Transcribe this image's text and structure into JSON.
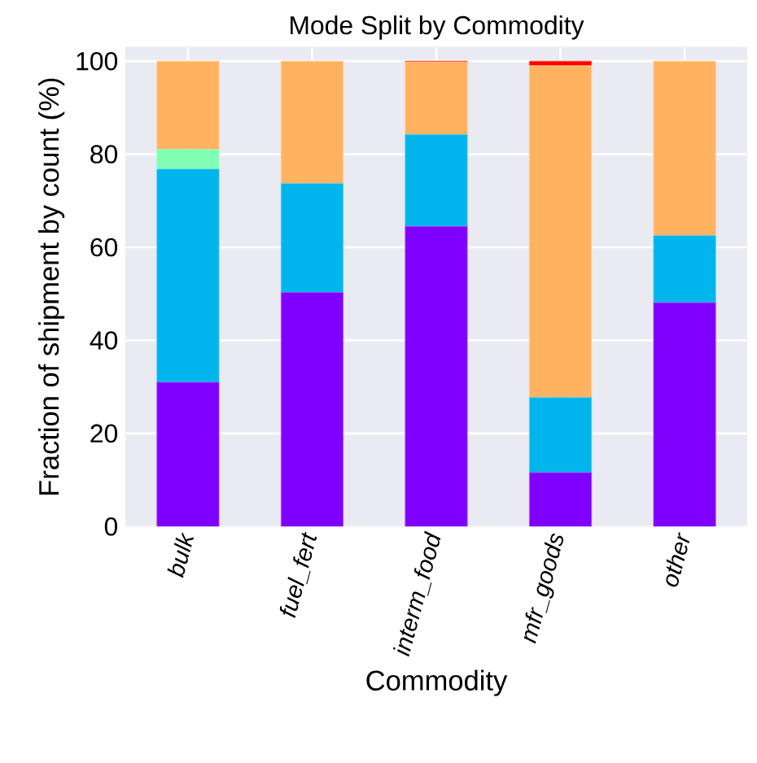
{
  "chart_data": {
    "type": "bar",
    "title": "Mode Split by Commodity",
    "xlabel": "Commodity",
    "ylabel": "Fraction of shipment by count (%)",
    "categories": [
      "bulk",
      "fuel_fert",
      "interm_food",
      "mfr_goods",
      "other"
    ],
    "stacked": true,
    "grid": true,
    "ylim": [
      0,
      103
    ],
    "yticks": [
      0,
      20,
      40,
      60,
      80,
      100
    ],
    "series": [
      {
        "color": "#8000ff",
        "values": [
          31,
          50.3,
          64.5,
          11.6,
          48.1
        ]
      },
      {
        "color": "#00b5eb",
        "values": [
          45.8,
          23.4,
          19.7,
          16.1,
          14.4
        ]
      },
      {
        "color": "#80ffb4",
        "values": [
          4.2,
          0,
          0,
          0,
          0
        ]
      },
      {
        "color": "#ffb360",
        "values": [
          19,
          26.3,
          15.6,
          71.3,
          37.5
        ]
      },
      {
        "color": "#ff0000",
        "values": [
          0,
          0,
          0.2,
          1.0,
          0
        ]
      }
    ]
  }
}
